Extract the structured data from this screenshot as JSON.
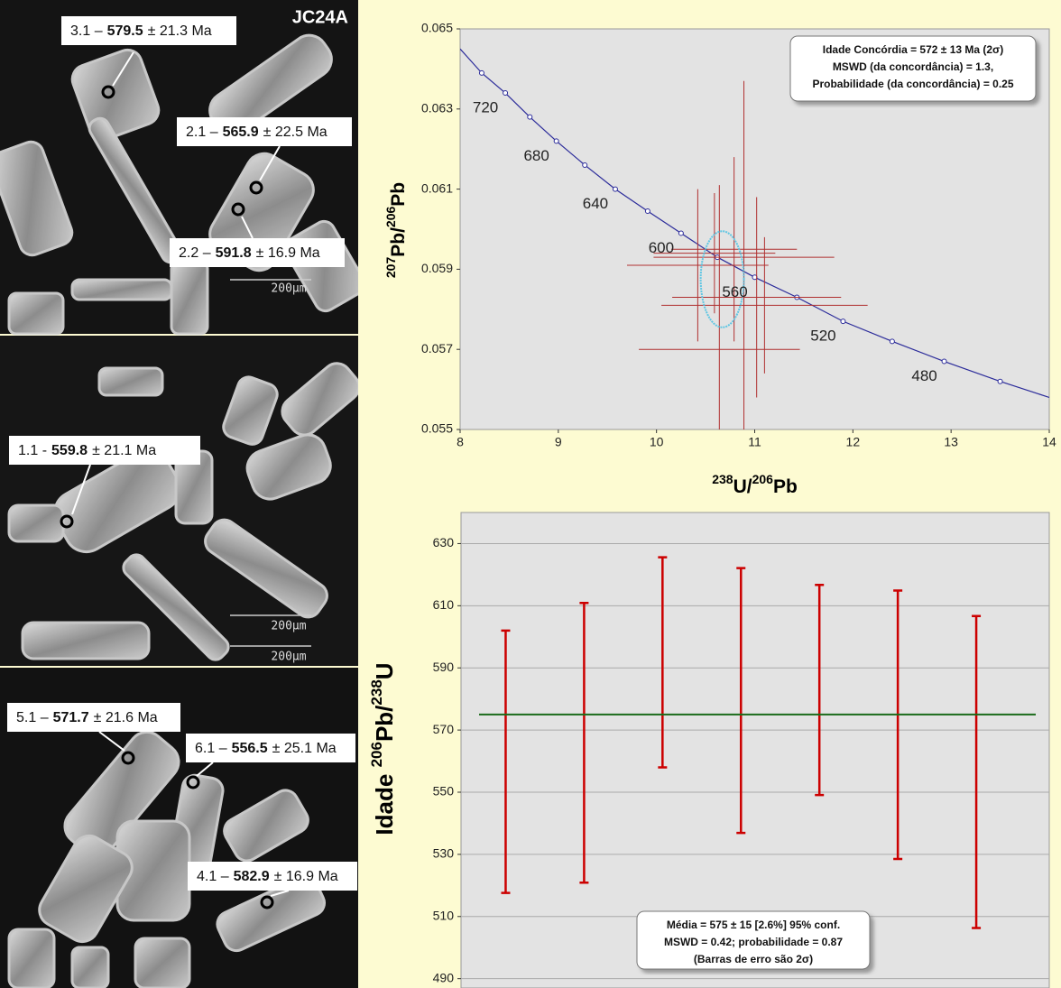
{
  "image_panel": {
    "sample": "JC24A",
    "spots": [
      {
        "spot": "3.1 –",
        "age": "579.5",
        "error": "± 21.3 Ma"
      },
      {
        "spot": "2.1 –",
        "age": "565.9",
        "error": "± 22.5 Ma"
      },
      {
        "spot": "2.2 –",
        "age": "591.8",
        "error": "± 16.9 Ma"
      },
      {
        "spot": "1.1 -",
        "age": "559.8",
        "error": "± 21.1 Ma"
      },
      {
        "spot": "5.1 –",
        "age": "571.7",
        "error": "± 21.6 Ma"
      },
      {
        "spot": "6.1 –",
        "age": "556.5",
        "error": "± 25.1 Ma"
      },
      {
        "spot": "4.1 –",
        "age": "582.9",
        "error": "± 16.9 Ma"
      }
    ],
    "scale_bars": [
      "200μm",
      "200μm",
      "200μm"
    ]
  },
  "chart_data": [
    {
      "type": "scatter",
      "x_label": [
        "238",
        "U/",
        "206",
        "Pb"
      ],
      "y_label": [
        "207",
        "Pb/",
        "206",
        "Pb"
      ],
      "xlim": [
        8,
        14
      ],
      "xticks": [
        8,
        9,
        10,
        11,
        12,
        13,
        14
      ],
      "ylim": [
        0.055,
        0.065
      ],
      "yticks": [
        0.055,
        0.057,
        0.059,
        0.061,
        0.063,
        0.065
      ],
      "curve": {
        "color": "#2b2b9a",
        "x": [
          8.0,
          8.22,
          8.46,
          8.71,
          8.98,
          9.27,
          9.58,
          9.91,
          10.25,
          10.62,
          11.0,
          11.43,
          11.9,
          12.4,
          12.93,
          13.5,
          14.0
        ],
        "y": [
          0.0645,
          0.0639,
          0.0634,
          0.0628,
          0.0622,
          0.0616,
          0.061,
          0.06045,
          0.0599,
          0.0593,
          0.0588,
          0.0583,
          0.0577,
          0.0572,
          0.0567,
          0.0562,
          0.0558
        ]
      },
      "age_labels": [
        720,
        680,
        640,
        600,
        560,
        520,
        480
      ],
      "points": {
        "color": "#b03030",
        "x": [
          10.42,
          10.59,
          10.64,
          10.79,
          10.89,
          11.02,
          11.1
        ],
        "y": [
          0.0591,
          0.0594,
          0.057,
          0.0595,
          0.0593,
          0.0583,
          0.0581
        ],
        "xerr": [
          0.72,
          0.62,
          0.82,
          0.64,
          0.92,
          0.86,
          1.05
        ],
        "yerr": [
          0.0019,
          0.0015,
          0.0041,
          0.0023,
          0.0044,
          0.0025,
          0.0017
        ]
      },
      "ellipse": {
        "cx": 10.67,
        "cy": 0.05875,
        "rx": 0.22,
        "ry": 0.0012,
        "color": "#5fc6e3"
      },
      "annotation": [
        "Idade Concórdia = 572 ± 13 Ma (2σ)",
        "MSWD (da concordância) = 1.3,",
        "Probabilidade (da concordância) = 0.25"
      ]
    },
    {
      "type": "errorbar",
      "y_label": [
        "Idade ",
        "206",
        "Pb/",
        "238",
        "U"
      ],
      "ylim": [
        487,
        640
      ],
      "yticks": [
        490,
        510,
        530,
        550,
        570,
        590,
        610,
        630
      ],
      "grid": true,
      "values": [
        559.8,
        565.9,
        591.8,
        579.5,
        582.9,
        571.7,
        556.5
      ],
      "errors": [
        42.2,
        45.0,
        33.8,
        42.6,
        33.8,
        43.2,
        50.2
      ],
      "color": "#cc0000",
      "mean": 575,
      "mean_color": "#1a6b1a",
      "annotation": [
        "Média = 575 ± 15  [2.6%]  95% conf.",
        "MSWD = 0.42; probabilidade = 0.87",
        "(Barras de erro são 2σ)"
      ]
    }
  ]
}
